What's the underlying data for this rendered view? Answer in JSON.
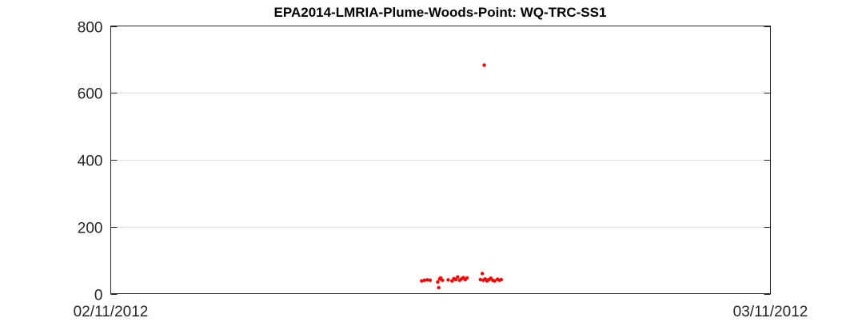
{
  "chart_data": {
    "type": "scatter",
    "title": "EPA2014-LMRIA-Plume-Woods-Point: WQ-TRC-SS1",
    "xlabel": "",
    "ylabel": "",
    "x_range": [
      "02/11/2012",
      "03/11/2012"
    ],
    "ylim": [
      0,
      800
    ],
    "y_ticks": [
      0,
      200,
      400,
      600,
      800
    ],
    "x_tick_labels": [
      "02/11/2012",
      "03/11/2012"
    ],
    "grid": true,
    "marker_color": "#ff0000",
    "points": [
      {
        "x": "02/24/2012 16:00",
        "y": 38
      },
      {
        "x": "02/24/2012 19:00",
        "y": 40
      },
      {
        "x": "02/24/2012 22:00",
        "y": 41
      },
      {
        "x": "02/25/2012 01:00",
        "y": 40
      },
      {
        "x": "02/25/2012 09:00",
        "y": 35
      },
      {
        "x": "02/25/2012 10:00",
        "y": 18
      },
      {
        "x": "02/25/2012 11:00",
        "y": 44
      },
      {
        "x": "02/25/2012 12:00",
        "y": 47
      },
      {
        "x": "02/25/2012 14:00",
        "y": 40
      },
      {
        "x": "02/25/2012 20:00",
        "y": 41
      },
      {
        "x": "02/26/2012 00:00",
        "y": 38
      },
      {
        "x": "02/26/2012 02:00",
        "y": 45
      },
      {
        "x": "02/26/2012 04:00",
        "y": 42
      },
      {
        "x": "02/26/2012 06:00",
        "y": 50
      },
      {
        "x": "02/26/2012 08:00",
        "y": 40
      },
      {
        "x": "02/26/2012 10:00",
        "y": 44
      },
      {
        "x": "02/26/2012 12:00",
        "y": 48
      },
      {
        "x": "02/26/2012 14:00",
        "y": 42
      },
      {
        "x": "02/26/2012 16:00",
        "y": 47
      },
      {
        "x": "02/27/2012 06:00",
        "y": 42
      },
      {
        "x": "02/27/2012 08:00",
        "y": 60
      },
      {
        "x": "02/27/2012 09:00",
        "y": 40
      },
      {
        "x": "02/27/2012 10:00",
        "y": 683
      },
      {
        "x": "02/27/2012 11:00",
        "y": 44
      },
      {
        "x": "02/27/2012 13:00",
        "y": 38
      },
      {
        "x": "02/27/2012 15:00",
        "y": 42
      },
      {
        "x": "02/27/2012 17:00",
        "y": 46
      },
      {
        "x": "02/27/2012 19:00",
        "y": 40
      },
      {
        "x": "02/27/2012 21:00",
        "y": 38
      },
      {
        "x": "02/28/2012 00:00",
        "y": 43
      },
      {
        "x": "02/28/2012 02:00",
        "y": 40
      },
      {
        "x": "02/28/2012 04:00",
        "y": 42
      }
    ]
  }
}
